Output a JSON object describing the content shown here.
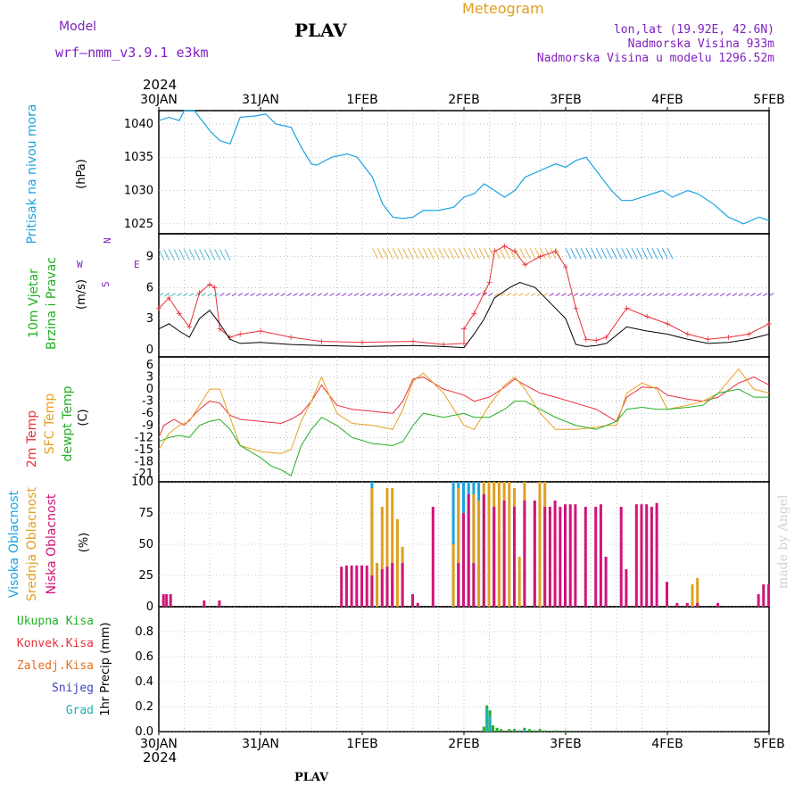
{
  "header": {
    "meteogram": "Meteogram",
    "model_label": "Model",
    "model_name": "wrf—nmm_v3.9.1  e3km",
    "station": "PLAV",
    "lonlat": "lon,lat (19.92E, 42.6N)",
    "elevation": "Nadmorska Visina 933m",
    "model_elevation": "Nadmorska Visina u modelu 1296.52m",
    "year": "2024",
    "footer_station": "PLAV",
    "made_by": "made by Angel"
  },
  "colors": {
    "pressure": "#1aa3e0",
    "temp2m": "#e8323c",
    "sfc": "#e8a020",
    "dewpt": "#22b022",
    "high_cloud": "#1aa3e0",
    "mid_cloud": "#e0a020",
    "low_cloud": "#d0147a",
    "precip_total": "#22b022",
    "precip_conv": "#e8323c",
    "precip_frozen": "#e87020",
    "snow": "#4040c8",
    "graupel": "#20b0b0",
    "wind_label": "#22b022",
    "wind_dir": "#8020c0",
    "gust": "#e8323c",
    "speed": "#000000"
  },
  "chart_data": [
    {
      "panel": "pressure",
      "type": "line",
      "labels": [
        "Pritisak na nivou mora",
        "(hPa)"
      ],
      "x_ticks": [
        "30JAN",
        "31JAN",
        "1FEB",
        "2FEB",
        "3FEB",
        "4FEB",
        "5FEB"
      ],
      "ylim": [
        1023.5,
        1042
      ],
      "y_ticks": [
        1025,
        1030,
        1035,
        1040
      ],
      "series": [
        {
          "x": [
            0,
            0.1,
            0.2,
            0.25,
            0.35,
            0.5,
            0.6,
            0.7,
            0.8,
            0.95,
            1.05,
            1.15,
            1.3,
            1.4,
            1.5,
            1.55,
            1.7,
            1.85,
            1.95,
            2.0,
            2.1,
            2.2,
            2.3,
            2.4,
            2.5,
            2.6,
            2.75,
            2.9,
            3.0,
            3.1,
            3.2,
            3.3,
            3.4,
            3.5,
            3.6,
            3.75,
            3.9,
            4.0,
            4.1,
            4.2,
            4.3,
            4.45,
            4.55,
            4.65,
            4.75,
            4.85,
            4.95,
            5.05,
            5.2,
            5.3,
            5.45,
            5.6,
            5.75,
            5.9,
            6.0
          ],
          "y": [
            1040.5,
            1041,
            1040.5,
            1042,
            1042,
            1039,
            1037.5,
            1037,
            1041,
            1041.2,
            1041.5,
            1040,
            1039.5,
            1036.5,
            1034,
            1033.8,
            1035,
            1035.5,
            1035,
            1034,
            1032,
            1028,
            1026,
            1025.8,
            1026,
            1027,
            1027,
            1027.5,
            1029,
            1029.5,
            1031,
            1030,
            1029,
            1030,
            1032,
            1033,
            1034,
            1033.5,
            1034.5,
            1035,
            1033,
            1030,
            1028.5,
            1028.5,
            1029,
            1029.5,
            1030,
            1029,
            1030,
            1029.5,
            1028,
            1026,
            1025,
            1026,
            1025.5
          ]
        }
      ]
    },
    {
      "panel": "wind",
      "type": "line",
      "labels": [
        "10m Vjetar",
        "Brzina i Pravac",
        "(m/s)"
      ],
      "compass": [
        "N",
        "E",
        "S",
        "W"
      ],
      "ylim": [
        -0.7,
        11.2
      ],
      "y_ticks": [
        0,
        3,
        6,
        9
      ],
      "series": [
        {
          "name": "gust",
          "x": [
            0,
            0.1,
            0.2,
            0.3,
            0.4,
            0.5,
            0.55,
            0.6,
            0.7,
            0.8,
            1.0,
            1.3,
            1.6,
            2.0,
            2.5,
            2.8,
            3.0,
            3.0,
            3.1,
            3.2,
            3.25,
            3.3,
            3.4,
            3.5,
            3.6,
            3.75,
            3.9,
            4.0,
            4.1,
            4.2,
            4.3,
            4.4,
            4.6,
            4.8,
            5.0,
            5.2,
            5.4,
            5.6,
            5.8,
            6.0
          ],
          "y": [
            4,
            5,
            3.5,
            2.2,
            5.5,
            6.3,
            6,
            2,
            1.2,
            1.5,
            1.8,
            1.2,
            0.8,
            0.7,
            0.8,
            0.5,
            0.6,
            2,
            3.5,
            5.5,
            6.5,
            9.5,
            10,
            9.5,
            8.2,
            9,
            9.5,
            8,
            4,
            1,
            0.9,
            1.2,
            4,
            3.2,
            2.5,
            1.5,
            1,
            1.2,
            1.5,
            2.5
          ]
        },
        {
          "name": "speed",
          "x": [
            0,
            0.1,
            0.2,
            0.3,
            0.4,
            0.5,
            0.6,
            0.7,
            0.8,
            1.0,
            1.3,
            1.6,
            2.0,
            2.5,
            2.8,
            3.0,
            3.1,
            3.2,
            3.3,
            3.45,
            3.55,
            3.7,
            3.85,
            4.0,
            4.1,
            4.2,
            4.3,
            4.4,
            4.6,
            4.8,
            5.0,
            5.2,
            5.4,
            5.6,
            5.8,
            6.0
          ],
          "y": [
            2,
            2.5,
            1.8,
            1.2,
            3,
            3.8,
            2.5,
            1,
            0.6,
            0.7,
            0.5,
            0.4,
            0.3,
            0.4,
            0.3,
            0.2,
            1.5,
            3,
            5,
            6,
            6.5,
            6,
            4.5,
            3,
            0.5,
            0.3,
            0.4,
            0.6,
            2.2,
            1.8,
            1.5,
            1,
            0.6,
            0.7,
            1,
            1.5
          ]
        }
      ]
    },
    {
      "panel": "temperature",
      "type": "line",
      "labels": [
        "2m Temp",
        "SFC Temp",
        "dewpt Temp",
        "(C)"
      ],
      "ylim": [
        -23,
        8
      ],
      "y_ticks": [
        -21,
        -18,
        -15,
        -12,
        -9,
        -6,
        -3,
        0,
        3,
        6
      ],
      "series": [
        {
          "name": "2m Temp",
          "x": [
            0,
            0.05,
            0.15,
            0.25,
            0.4,
            0.5,
            0.6,
            0.7,
            0.8,
            1.0,
            1.2,
            1.3,
            1.4,
            1.5,
            1.6,
            1.75,
            1.9,
            2.1,
            2.3,
            2.4,
            2.5,
            2.6,
            2.8,
            3.0,
            3.1,
            3.25,
            3.4,
            3.5,
            3.6,
            3.75,
            3.9,
            4.1,
            4.3,
            4.4,
            4.5,
            4.6,
            4.75,
            4.9,
            5.0,
            5.2,
            5.35,
            5.5,
            5.7,
            5.85,
            6.0
          ],
          "y": [
            -12,
            -9,
            -7.5,
            -9,
            -5,
            -3,
            -3.5,
            -6.5,
            -7.5,
            -8,
            -8.5,
            -7.5,
            -6,
            -3,
            1,
            -4,
            -5,
            -5.5,
            -6,
            -3,
            2.5,
            3,
            0,
            -1.5,
            -3,
            -2,
            0.5,
            2.5,
            1,
            -1,
            -2,
            -3.5,
            -5,
            -6.5,
            -8,
            -2,
            0.5,
            0.3,
            -1.5,
            -2.5,
            -3,
            -2,
            1.5,
            3,
            1
          ]
        },
        {
          "name": "SFC Temp",
          "x": [
            0,
            0.1,
            0.2,
            0.3,
            0.4,
            0.5,
            0.6,
            0.7,
            0.8,
            1.0,
            1.2,
            1.3,
            1.4,
            1.5,
            1.6,
            1.75,
            1.9,
            2.1,
            2.3,
            2.4,
            2.5,
            2.6,
            2.8,
            3.0,
            3.1,
            3.25,
            3.4,
            3.5,
            3.6,
            3.75,
            3.9,
            4.1,
            4.3,
            4.4,
            4.5,
            4.6,
            4.75,
            4.9,
            5.0,
            5.2,
            5.35,
            5.5,
            5.7,
            5.85,
            6.0
          ],
          "y": [
            -15,
            -11,
            -9,
            -8,
            -4,
            0,
            0,
            -7,
            -14,
            -15.5,
            -16,
            -15,
            -8,
            -3,
            3,
            -6,
            -8.5,
            -9,
            -10,
            -5,
            2,
            4,
            -1,
            -9,
            -10,
            -4,
            1,
            3,
            0,
            -6,
            -10,
            -10,
            -9.5,
            -9,
            -9,
            -1,
            1.5,
            0,
            -5,
            -4,
            -3,
            -1,
            5,
            0,
            -1
          ]
        },
        {
          "name": "dewpt Temp",
          "x": [
            0,
            0.1,
            0.2,
            0.3,
            0.4,
            0.5,
            0.6,
            0.7,
            0.8,
            1.0,
            1.1,
            1.2,
            1.3,
            1.4,
            1.5,
            1.6,
            1.75,
            1.9,
            2.1,
            2.3,
            2.4,
            2.5,
            2.6,
            2.8,
            3.0,
            3.1,
            3.25,
            3.4,
            3.5,
            3.6,
            3.75,
            3.9,
            4.1,
            4.3,
            4.4,
            4.5,
            4.6,
            4.75,
            4.9,
            5.0,
            5.2,
            5.35,
            5.5,
            5.7,
            5.85,
            6.0
          ],
          "y": [
            -13,
            -12,
            -11.5,
            -12,
            -9,
            -8,
            -7.5,
            -10,
            -14,
            -17,
            -19,
            -20,
            -21.5,
            -14,
            -10,
            -7,
            -9,
            -12,
            -13.5,
            -14,
            -13,
            -9,
            -6,
            -7,
            -6,
            -7,
            -7,
            -5,
            -3,
            -3,
            -5,
            -7,
            -9,
            -10,
            -9,
            -8,
            -5,
            -4.5,
            -5,
            -5,
            -4.5,
            -4,
            -1,
            0,
            -2,
            -2
          ]
        }
      ]
    },
    {
      "panel": "cloud",
      "type": "bar",
      "labels": [
        "Visoka Oblacnost",
        "Srednja Oblacnost",
        "Niska Oblacnost",
        "(%)"
      ],
      "ylim": [
        0,
        100
      ],
      "y_ticks": [
        0,
        25,
        50,
        75,
        100
      ],
      "series": [
        {
          "name": "low",
          "x": [
            0.05,
            0.08,
            0.12,
            0.45,
            0.6,
            1.8,
            1.85,
            1.9,
            1.95,
            2.0,
            2.05,
            2.1,
            2.2,
            2.25,
            2.3,
            2.4,
            2.5,
            2.55,
            2.7,
            2.95,
            3.0,
            3.05,
            3.1,
            3.2,
            3.3,
            3.4,
            3.5,
            3.6,
            3.7,
            3.8,
            3.85,
            3.9,
            3.95,
            4.0,
            4.05,
            4.1,
            4.2,
            4.3,
            4.35,
            4.4,
            4.55,
            4.6,
            4.7,
            4.75,
            4.8,
            4.85,
            4.9,
            5.0,
            5.1,
            5.2,
            5.3,
            5.5,
            5.9,
            5.95,
            6.0
          ],
          "y": [
            10,
            10,
            10,
            5,
            5,
            32,
            33,
            33,
            33,
            33,
            33,
            25,
            30,
            32,
            35,
            35,
            10,
            3,
            80,
            35,
            75,
            90,
            35,
            90,
            80,
            85,
            80,
            85,
            85,
            80,
            80,
            85,
            80,
            82,
            82,
            82,
            80,
            80,
            82,
            40,
            80,
            30,
            82,
            82,
            82,
            80,
            83,
            20,
            3,
            3,
            3,
            3,
            10,
            18,
            18
          ]
        },
        {
          "name": "mid",
          "x": [
            2.1,
            2.15,
            2.2,
            2.25,
            2.3,
            2.35,
            2.4,
            2.9,
            2.95,
            3.0,
            3.05,
            3.1,
            3.15,
            3.2,
            3.25,
            3.3,
            3.35,
            3.4,
            3.45,
            3.5,
            3.55,
            3.6,
            3.7,
            3.75,
            3.8,
            5.25,
            5.3
          ],
          "y": [
            95,
            35,
            80,
            95,
            95,
            70,
            48,
            50,
            95,
            55,
            40,
            90,
            85,
            100,
            100,
            100,
            100,
            100,
            100,
            95,
            40,
            100,
            85,
            100,
            100,
            18,
            23
          ]
        },
        {
          "name": "high",
          "x": [
            2.1,
            2.15,
            2.3,
            2.9,
            2.95,
            3.0,
            3.05,
            3.1,
            3.15,
            3.2,
            3.3,
            3.35
          ],
          "y": [
            100,
            35,
            20,
            100,
            100,
            100,
            100,
            100,
            100,
            90,
            80,
            60
          ]
        }
      ]
    },
    {
      "panel": "precip",
      "type": "bar",
      "labels": [
        "Ukupna Kisa",
        "Konvek.Kisa",
        "Zaledj.Kisa",
        "Snijeg",
        "Grad",
        "1hr Precip (mm)"
      ],
      "ylim": [
        0,
        1
      ],
      "y_ticks": [
        0,
        0.2,
        0.4,
        0.6,
        0.8
      ],
      "x_ticks": [
        "30JAN",
        "31JAN",
        "1FEB",
        "2FEB",
        "3FEB",
        "4FEB",
        "5FEB"
      ],
      "series": [
        {
          "name": "total",
          "x": [
            3.2,
            3.23,
            3.26,
            3.29,
            3.33,
            3.37,
            3.45,
            3.5,
            3.55,
            3.6,
            3.65,
            3.7,
            3.75,
            3.8,
            3.9,
            4.0
          ],
          "y": [
            0.04,
            0.21,
            0.17,
            0.05,
            0.03,
            0.02,
            0.02,
            0.02,
            0.01,
            0.03,
            0.02,
            0.01,
            0.02,
            0.01,
            0.01,
            0.01
          ]
        },
        {
          "name": "graupel",
          "x": [
            3.23,
            3.26,
            3.6
          ],
          "y": [
            0.19,
            0.13,
            0.02
          ]
        }
      ]
    }
  ]
}
